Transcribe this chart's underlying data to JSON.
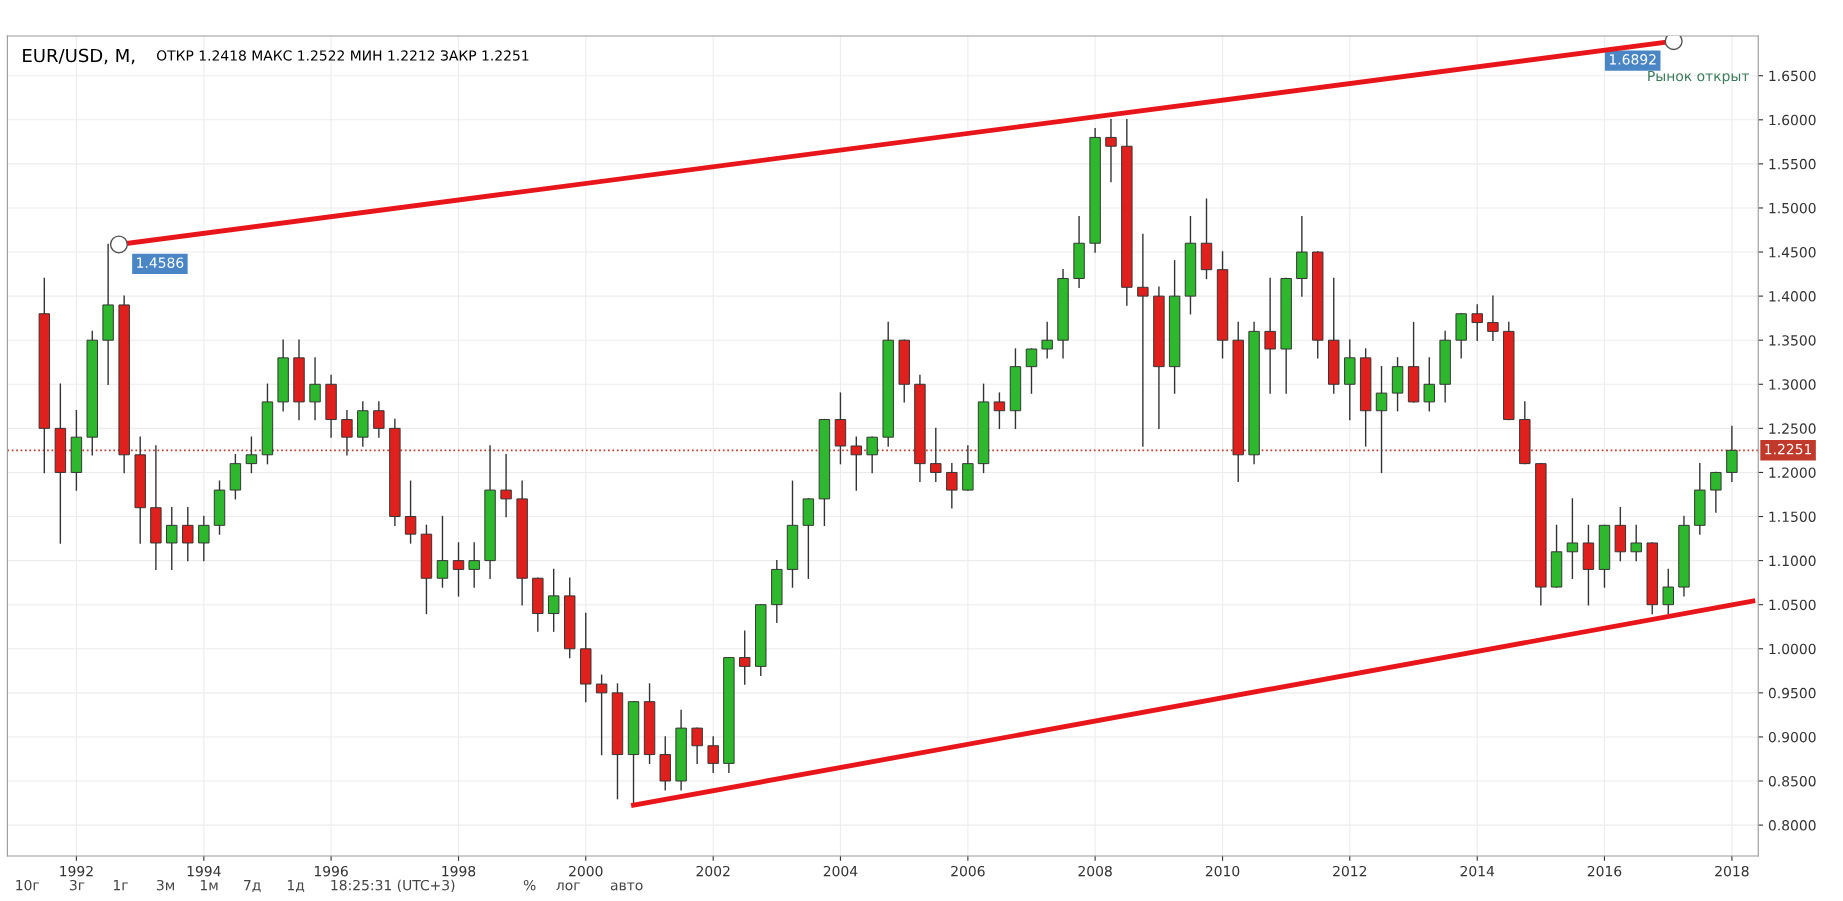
{
  "chart_data": {
    "type": "candlestick",
    "title": "EUR/USD, M,",
    "subtitle": "ОТКР 1.2418 МАКС 1.2522 МИН 1.2212 ЗАКР 1.2251",
    "x": [
      "1991-07",
      "1991-10",
      "1992-01",
      "1992-04",
      "1992-07",
      "1992-10",
      "1993-01",
      "1993-04",
      "1993-07",
      "1993-10",
      "1994-01",
      "1994-04",
      "1994-07",
      "1994-10",
      "1995-01",
      "1995-04",
      "1995-07",
      "1995-10",
      "1996-01",
      "1996-04",
      "1996-07",
      "1996-10",
      "1997-01",
      "1997-04",
      "1997-07",
      "1997-10",
      "1998-01",
      "1998-04",
      "1998-07",
      "1998-10",
      "1999-01",
      "1999-04",
      "1999-07",
      "1999-10",
      "2000-01",
      "2000-04",
      "2000-07",
      "2000-10",
      "2001-01",
      "2001-04",
      "2001-07",
      "2001-10",
      "2002-01",
      "2002-04",
      "2002-07",
      "2002-10",
      "2003-01",
      "2003-04",
      "2003-07",
      "2003-10",
      "2004-01",
      "2004-04",
      "2004-07",
      "2004-10",
      "2005-01",
      "2005-04",
      "2005-07",
      "2005-10",
      "2006-01",
      "2006-04",
      "2006-07",
      "2006-10",
      "2007-01",
      "2007-04",
      "2007-07",
      "2007-10",
      "2008-01",
      "2008-04",
      "2008-07",
      "2008-10",
      "2009-01",
      "2009-04",
      "2009-07",
      "2009-10",
      "2010-01",
      "2010-04",
      "2010-07",
      "2010-10",
      "2011-01",
      "2011-04",
      "2011-07",
      "2011-10",
      "2012-01",
      "2012-04",
      "2012-07",
      "2012-10",
      "2013-01",
      "2013-04",
      "2013-07",
      "2013-10",
      "2014-01",
      "2014-04",
      "2014-07",
      "2014-10",
      "2015-01",
      "2015-04",
      "2015-07",
      "2015-10",
      "2016-01",
      "2016-04",
      "2016-07",
      "2016-10",
      "2017-01",
      "2017-04",
      "2017-07",
      "2017-10",
      "2018-01"
    ],
    "ohlc": [
      [
        1.38,
        1.42,
        1.2,
        1.25
      ],
      [
        1.25,
        1.3,
        1.12,
        1.2
      ],
      [
        1.2,
        1.27,
        1.18,
        1.24
      ],
      [
        1.24,
        1.36,
        1.22,
        1.35
      ],
      [
        1.35,
        1.4586,
        1.3,
        1.39
      ],
      [
        1.39,
        1.4,
        1.2,
        1.22
      ],
      [
        1.22,
        1.24,
        1.12,
        1.16
      ],
      [
        1.16,
        1.23,
        1.09,
        1.12
      ],
      [
        1.12,
        1.16,
        1.09,
        1.14
      ],
      [
        1.14,
        1.16,
        1.1,
        1.12
      ],
      [
        1.12,
        1.15,
        1.1,
        1.14
      ],
      [
        1.14,
        1.19,
        1.13,
        1.18
      ],
      [
        1.18,
        1.22,
        1.17,
        1.21
      ],
      [
        1.21,
        1.24,
        1.2,
        1.22
      ],
      [
        1.22,
        1.3,
        1.21,
        1.28
      ],
      [
        1.28,
        1.35,
        1.27,
        1.33
      ],
      [
        1.33,
        1.35,
        1.26,
        1.28
      ],
      [
        1.28,
        1.33,
        1.26,
        1.3
      ],
      [
        1.3,
        1.31,
        1.24,
        1.26
      ],
      [
        1.26,
        1.27,
        1.22,
        1.24
      ],
      [
        1.24,
        1.28,
        1.23,
        1.27
      ],
      [
        1.27,
        1.28,
        1.24,
        1.25
      ],
      [
        1.25,
        1.26,
        1.14,
        1.15
      ],
      [
        1.15,
        1.19,
        1.12,
        1.13
      ],
      [
        1.13,
        1.14,
        1.04,
        1.08
      ],
      [
        1.08,
        1.15,
        1.07,
        1.1
      ],
      [
        1.1,
        1.12,
        1.06,
        1.09
      ],
      [
        1.09,
        1.12,
        1.07,
        1.1
      ],
      [
        1.1,
        1.23,
        1.08,
        1.18
      ],
      [
        1.18,
        1.22,
        1.15,
        1.17
      ],
      [
        1.17,
        1.19,
        1.05,
        1.08
      ],
      [
        1.08,
        1.08,
        1.02,
        1.04
      ],
      [
        1.04,
        1.09,
        1.02,
        1.06
      ],
      [
        1.06,
        1.08,
        0.99,
        1.0
      ],
      [
        1.0,
        1.04,
        0.94,
        0.96
      ],
      [
        0.96,
        0.97,
        0.88,
        0.95
      ],
      [
        0.95,
        0.96,
        0.83,
        0.88
      ],
      [
        0.88,
        0.94,
        0.8225,
        0.94
      ],
      [
        0.94,
        0.96,
        0.87,
        0.88
      ],
      [
        0.88,
        0.9,
        0.84,
        0.85
      ],
      [
        0.85,
        0.93,
        0.84,
        0.91
      ],
      [
        0.91,
        0.91,
        0.87,
        0.89
      ],
      [
        0.89,
        0.9,
        0.86,
        0.87
      ],
      [
        0.87,
        0.99,
        0.86,
        0.99
      ],
      [
        0.99,
        1.02,
        0.96,
        0.98
      ],
      [
        0.98,
        1.05,
        0.97,
        1.05
      ],
      [
        1.05,
        1.1,
        1.03,
        1.09
      ],
      [
        1.09,
        1.19,
        1.07,
        1.14
      ],
      [
        1.14,
        1.17,
        1.08,
        1.17
      ],
      [
        1.17,
        1.26,
        1.14,
        1.26
      ],
      [
        1.26,
        1.29,
        1.21,
        1.23
      ],
      [
        1.23,
        1.24,
        1.18,
        1.22
      ],
      [
        1.22,
        1.24,
        1.2,
        1.24
      ],
      [
        1.24,
        1.37,
        1.23,
        1.35
      ],
      [
        1.35,
        1.35,
        1.28,
        1.3
      ],
      [
        1.3,
        1.31,
        1.19,
        1.21
      ],
      [
        1.21,
        1.25,
        1.19,
        1.2
      ],
      [
        1.2,
        1.21,
        1.16,
        1.18
      ],
      [
        1.18,
        1.23,
        1.18,
        1.21
      ],
      [
        1.21,
        1.3,
        1.2,
        1.28
      ],
      [
        1.28,
        1.29,
        1.25,
        1.27
      ],
      [
        1.27,
        1.34,
        1.25,
        1.32
      ],
      [
        1.32,
        1.34,
        1.29,
        1.34
      ],
      [
        1.34,
        1.37,
        1.33,
        1.35
      ],
      [
        1.35,
        1.43,
        1.33,
        1.42
      ],
      [
        1.42,
        1.49,
        1.41,
        1.46
      ],
      [
        1.46,
        1.59,
        1.45,
        1.58
      ],
      [
        1.58,
        1.6,
        1.53,
        1.57
      ],
      [
        1.57,
        1.6,
        1.39,
        1.41
      ],
      [
        1.41,
        1.47,
        1.23,
        1.4
      ],
      [
        1.4,
        1.41,
        1.25,
        1.32
      ],
      [
        1.32,
        1.44,
        1.29,
        1.4
      ],
      [
        1.4,
        1.49,
        1.38,
        1.46
      ],
      [
        1.46,
        1.51,
        1.42,
        1.43
      ],
      [
        1.43,
        1.45,
        1.33,
        1.35
      ],
      [
        1.35,
        1.37,
        1.19,
        1.22
      ],
      [
        1.22,
        1.37,
        1.21,
        1.36
      ],
      [
        1.36,
        1.42,
        1.29,
        1.34
      ],
      [
        1.34,
        1.42,
        1.29,
        1.42
      ],
      [
        1.42,
        1.49,
        1.4,
        1.45
      ],
      [
        1.45,
        1.45,
        1.33,
        1.35
      ],
      [
        1.35,
        1.42,
        1.29,
        1.3
      ],
      [
        1.3,
        1.35,
        1.26,
        1.33
      ],
      [
        1.33,
        1.34,
        1.23,
        1.27
      ],
      [
        1.27,
        1.32,
        1.2,
        1.29
      ],
      [
        1.29,
        1.33,
        1.27,
        1.32
      ],
      [
        1.32,
        1.37,
        1.28,
        1.28
      ],
      [
        1.28,
        1.33,
        1.27,
        1.3
      ],
      [
        1.3,
        1.36,
        1.28,
        1.35
      ],
      [
        1.35,
        1.38,
        1.33,
        1.38
      ],
      [
        1.38,
        1.39,
        1.35,
        1.37
      ],
      [
        1.37,
        1.4,
        1.35,
        1.36
      ],
      [
        1.36,
        1.37,
        1.26,
        1.26
      ],
      [
        1.26,
        1.28,
        1.21,
        1.21
      ],
      [
        1.21,
        1.21,
        1.05,
        1.07
      ],
      [
        1.07,
        1.14,
        1.07,
        1.11
      ],
      [
        1.11,
        1.17,
        1.08,
        1.12
      ],
      [
        1.12,
        1.14,
        1.05,
        1.09
      ],
      [
        1.09,
        1.14,
        1.07,
        1.14
      ],
      [
        1.14,
        1.16,
        1.1,
        1.11
      ],
      [
        1.11,
        1.14,
        1.1,
        1.12
      ],
      [
        1.12,
        1.12,
        1.04,
        1.05
      ],
      [
        1.05,
        1.09,
        1.04,
        1.07
      ],
      [
        1.07,
        1.15,
        1.06,
        1.14
      ],
      [
        1.14,
        1.21,
        1.13,
        1.18
      ],
      [
        1.18,
        1.2,
        1.155,
        1.2
      ],
      [
        1.2,
        1.2522,
        1.19,
        1.2251
      ]
    ],
    "colors": [
      "#e0201c",
      "#e0201c",
      "#2eb82e",
      "#2eb82e",
      "#2eb82e",
      "#e0201c",
      "#e0201c",
      "#e0201c",
      "#2eb82e",
      "#e0201c",
      "#2eb82e",
      "#2eb82e",
      "#2eb82e",
      "#2eb82e",
      "#2eb82e",
      "#2eb82e",
      "#e0201c",
      "#2eb82e",
      "#e0201c",
      "#e0201c",
      "#2eb82e",
      "#e0201c",
      "#e0201c",
      "#e0201c",
      "#e0201c",
      "#2eb82e",
      "#e0201c",
      "#2eb82e",
      "#2eb82e",
      "#e0201c",
      "#e0201c",
      "#e0201c",
      "#2eb82e",
      "#e0201c",
      "#e0201c",
      "#e0201c",
      "#e0201c",
      "#2eb82e",
      "#e0201c",
      "#e0201c",
      "#2eb82e",
      "#e0201c",
      "#e0201c",
      "#2eb82e",
      "#e0201c",
      "#2eb82e",
      "#2eb82e",
      "#2eb82e",
      "#2eb82e",
      "#2eb82e",
      "#e0201c",
      "#e0201c",
      "#2eb82e",
      "#2eb82e",
      "#e0201c",
      "#e0201c",
      "#e0201c",
      "#e0201c",
      "#2eb82e",
      "#2eb82e",
      "#e0201c",
      "#2eb82e",
      "#2eb82e",
      "#2eb82e",
      "#2eb82e",
      "#2eb82e",
      "#2eb82e",
      "#e0201c",
      "#e0201c",
      "#e0201c",
      "#e0201c",
      "#2eb82e",
      "#2eb82e",
      "#e0201c",
      "#e0201c",
      "#e0201c",
      "#2eb82e",
      "#e0201c",
      "#2eb82e",
      "#2eb82e",
      "#e0201c",
      "#e0201c",
      "#2eb82e",
      "#e0201c",
      "#2eb82e",
      "#2eb82e",
      "#e0201c",
      "#2eb82e",
      "#2eb82e",
      "#2eb82e",
      "#e0201c",
      "#e0201c",
      "#e0201c",
      "#e0201c",
      "#e0201c",
      "#2eb82e",
      "#2eb82e",
      "#e0201c",
      "#2eb82e",
      "#e0201c",
      "#2eb82e",
      "#e0201c",
      "#2eb82e",
      "#2eb82e",
      "#2eb82e",
      "#2eb82e",
      "#2eb82e"
    ],
    "series": [
      {
        "type": "line",
        "x": [
          "1992-09",
          "2017-02"
        ],
        "values": [
          1.4586,
          1.6892
        ],
        "color": "#e8161b",
        "marker": "circle",
        "value_labels": [
          "1.4586",
          "1.6892"
        ]
      },
      {
        "type": "line",
        "x": [
          "2000-10",
          "2018-05"
        ],
        "values": [
          0.8225,
          1.054
        ],
        "color": "#e8161b"
      }
    ],
    "ref_lines": [
      {
        "axis": "y",
        "value": 1.2251,
        "label": "1.2251",
        "color": "#c0392b",
        "line_style": "dotted"
      }
    ],
    "xlim": [
      "1990-12",
      "2018-06"
    ],
    "xticks": [
      "1992",
      "1994",
      "1996",
      "1998",
      "2000",
      "2002",
      "2004",
      "2006",
      "2008",
      "2010",
      "2012",
      "2014",
      "2016",
      "2018"
    ],
    "ylim": [
      0.765,
      1.695
    ],
    "yticks": [
      {
        "value": 0.8,
        "label": "0.8000"
      },
      {
        "value": 0.85,
        "label": "0.8500"
      },
      {
        "value": 0.9,
        "label": "0.9000"
      },
      {
        "value": 0.95,
        "label": "0.9500"
      },
      {
        "value": 1.0,
        "label": "1.0000"
      },
      {
        "value": 1.05,
        "label": "1.0500"
      },
      {
        "value": 1.1,
        "label": "1.1000"
      },
      {
        "value": 1.15,
        "label": "1.1500"
      },
      {
        "value": 1.2,
        "label": "1.2000"
      },
      {
        "value": 1.25,
        "label": "1.2500"
      },
      {
        "value": 1.3,
        "label": "1.3000"
      },
      {
        "value": 1.35,
        "label": "1.3500"
      },
      {
        "value": 1.4,
        "label": "1.4000"
      },
      {
        "value": 1.45,
        "label": "1.4500"
      },
      {
        "value": 1.5,
        "label": "1.5000"
      },
      {
        "value": 1.55,
        "label": "1.5500"
      },
      {
        "value": 1.6,
        "label": "1.6000"
      },
      {
        "value": 1.65,
        "label": "1.6500"
      }
    ],
    "grid": true,
    "annotations": [
      "Рынок открыт",
      "10г",
      "3г",
      "1г",
      "3м",
      "1м",
      "7д",
      "1д",
      "18:25:31 (UTC+3)",
      "%",
      "лог",
      "авто"
    ]
  }
}
